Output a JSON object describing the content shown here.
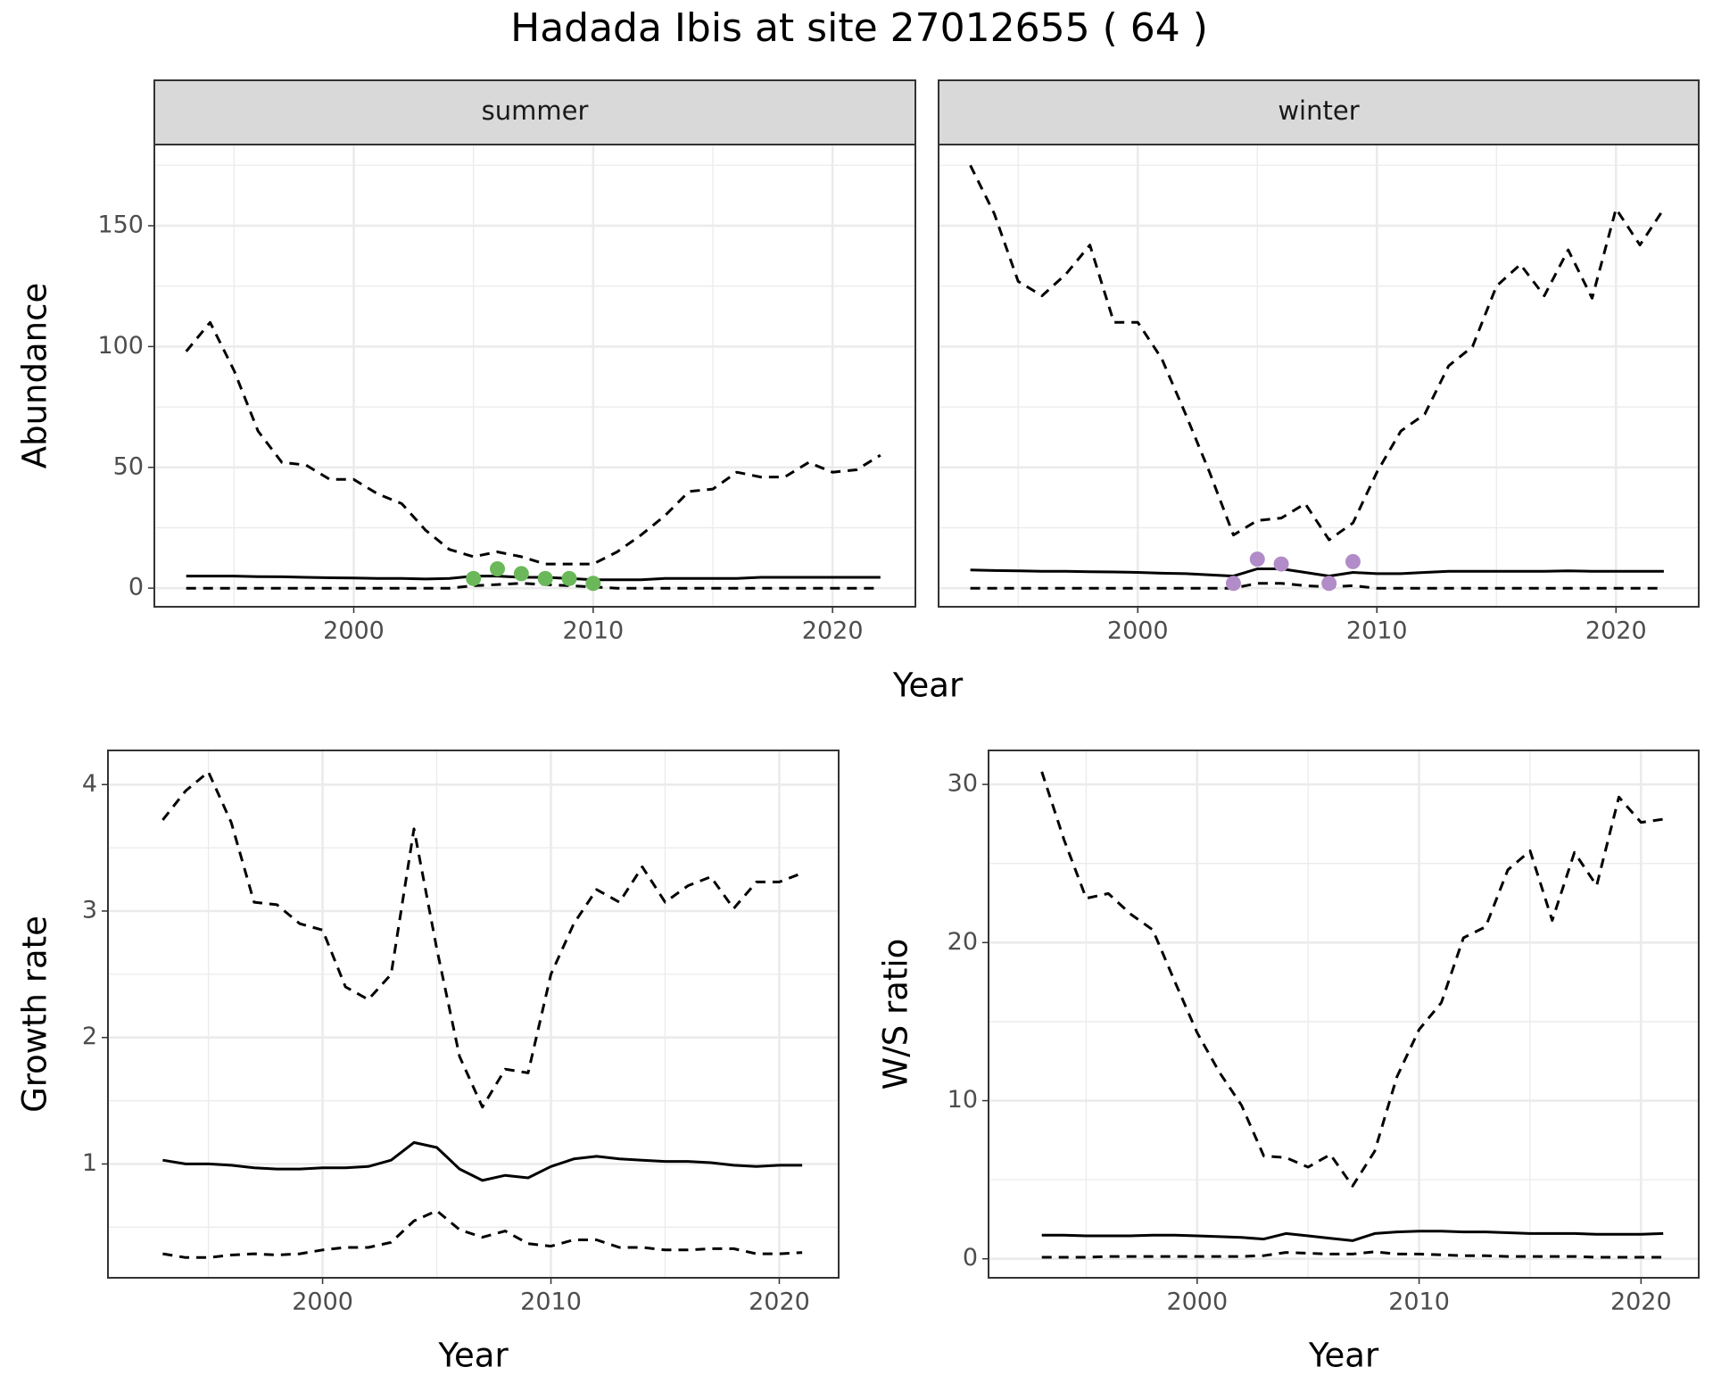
{
  "title": "Hadada Ibis at site 27012655 ( 64 )",
  "top_xlabel": "Year",
  "chart_data": [
    {
      "type": "line",
      "facet": "summer",
      "ylabel": "Abundance",
      "grid": true,
      "xlim": [
        1991.67,
        2023.46
      ],
      "xticks": [
        2000,
        2010,
        2020
      ],
      "xminorticks": [
        1995,
        2005,
        2015
      ],
      "ylim": [
        -7.7,
        183.6
      ],
      "yticks": [
        0,
        50,
        100,
        150
      ],
      "yminorticks": [
        25,
        75,
        125,
        175
      ],
      "x": [
        1993,
        1994,
        1995,
        1996,
        1997,
        1998,
        1999,
        2000,
        2001,
        2002,
        2003,
        2004,
        2005,
        2006,
        2007,
        2008,
        2009,
        2010,
        2011,
        2012,
        2013,
        2014,
        2015,
        2016,
        2017,
        2018,
        2019,
        2020,
        2021,
        2022
      ],
      "series": [
        {
          "style": "dashed",
          "color": "#000000",
          "values": [
            98,
            110,
            90,
            65,
            52,
            51,
            45,
            45,
            39,
            35,
            24,
            16,
            13,
            15,
            13,
            10,
            10,
            10,
            15,
            22,
            30,
            40,
            41,
            48,
            46,
            46,
            52,
            48,
            49,
            55
          ]
        },
        {
          "style": "solid",
          "color": "#000000",
          "values": [
            5,
            5,
            5,
            4.8,
            4.7,
            4.5,
            4.3,
            4.2,
            4,
            4,
            3.8,
            4,
            5,
            5,
            4.5,
            4.5,
            4,
            3.5,
            3.5,
            3.5,
            4,
            4,
            4,
            4,
            4.5,
            4.5,
            4.5,
            4.5,
            4.5,
            4.5
          ]
        },
        {
          "style": "dashed",
          "color": "#000000",
          "values": [
            0,
            0,
            0,
            0,
            0,
            0,
            0,
            0,
            0,
            0,
            0,
            0,
            1,
            1.5,
            2,
            1.5,
            1,
            0.5,
            0,
            0,
            0,
            0,
            0,
            0,
            0,
            0,
            0,
            0,
            0,
            0
          ]
        },
        {
          "style": "point",
          "color": "#6ab85a",
          "x": [
            2005,
            2006,
            2007,
            2008,
            2009,
            2010
          ],
          "values": [
            4,
            8,
            6,
            4,
            4,
            2
          ]
        }
      ]
    },
    {
      "type": "line",
      "facet": "winter",
      "grid": true,
      "ytick_labels": false,
      "xlim": [
        1991.67,
        2023.46
      ],
      "xticks": [
        2000,
        2010,
        2020
      ],
      "xminorticks": [
        1995,
        2005,
        2015
      ],
      "ylim": [
        -7.7,
        183.6
      ],
      "yticks": [
        0,
        50,
        100,
        150
      ],
      "yminorticks": [
        25,
        75,
        125,
        175
      ],
      "x": [
        1993,
        1994,
        1995,
        1996,
        1997,
        1998,
        1999,
        2000,
        2001,
        2002,
        2003,
        2004,
        2005,
        2006,
        2007,
        2008,
        2009,
        2010,
        2011,
        2012,
        2013,
        2014,
        2015,
        2016,
        2017,
        2018,
        2019,
        2020,
        2021,
        2022
      ],
      "series": [
        {
          "style": "dashed",
          "color": "#000000",
          "values": [
            175,
            155,
            127,
            121,
            130,
            142,
            110,
            110,
            95,
            72,
            48,
            22,
            28,
            29,
            35,
            20,
            27,
            48,
            65,
            72,
            92,
            100,
            125,
            134,
            121,
            140,
            120,
            157,
            142,
            157
          ]
        },
        {
          "style": "solid",
          "color": "#000000",
          "values": [
            7.5,
            7.3,
            7.2,
            7,
            7,
            6.8,
            6.7,
            6.5,
            6.2,
            6,
            5.5,
            5,
            8,
            8,
            6.5,
            5,
            6.5,
            6,
            6,
            6.5,
            7,
            7,
            7,
            7,
            7,
            7.2,
            7,
            7,
            7,
            7
          ]
        },
        {
          "style": "dashed",
          "color": "#000000",
          "values": [
            0,
            0,
            0,
            0,
            0,
            0,
            0,
            0,
            0,
            0,
            0,
            0,
            2,
            2,
            1,
            0.5,
            1,
            0,
            0,
            0,
            0,
            0,
            0,
            0,
            0,
            0,
            0,
            0,
            0,
            0
          ]
        },
        {
          "style": "point",
          "color": "#b18cc8",
          "x": [
            2004,
            2005,
            2006,
            2008,
            2009
          ],
          "values": [
            2,
            12,
            10,
            2,
            11
          ]
        }
      ]
    },
    {
      "type": "line",
      "xlabel": "Year",
      "ylabel": "Growth rate",
      "grid": true,
      "xlim": [
        1990.6,
        2022.6
      ],
      "xticks": [
        2000,
        2010,
        2020
      ],
      "xminorticks": [
        1995,
        2005,
        2015
      ],
      "ylim": [
        0.1,
        4.27
      ],
      "yticks": [
        1,
        2,
        3,
        4
      ],
      "yminorticks": [
        0.5,
        1.5,
        2.5,
        3.5
      ],
      "x": [
        1993,
        1994,
        1995,
        1996,
        1997,
        1998,
        1999,
        2000,
        2001,
        2002,
        2003,
        2004,
        2005,
        2006,
        2007,
        2008,
        2009,
        2010,
        2011,
        2012,
        2013,
        2014,
        2015,
        2016,
        2017,
        2018,
        2019,
        2020,
        2021
      ],
      "series": [
        {
          "style": "dashed",
          "color": "#000000",
          "values": [
            3.72,
            3.95,
            4.1,
            3.7,
            3.07,
            3.05,
            2.9,
            2.85,
            2.4,
            2.3,
            2.5,
            3.65,
            2.7,
            1.85,
            1.45,
            1.75,
            1.72,
            2.5,
            2.9,
            3.17,
            3.07,
            3.35,
            3.07,
            3.2,
            3.27,
            3.02,
            3.23,
            3.23,
            3.3
          ]
        },
        {
          "style": "solid",
          "color": "#000000",
          "values": [
            1.03,
            1.0,
            1.0,
            0.99,
            0.97,
            0.96,
            0.96,
            0.97,
            0.97,
            0.98,
            1.03,
            1.17,
            1.13,
            0.96,
            0.87,
            0.91,
            0.89,
            0.98,
            1.04,
            1.06,
            1.04,
            1.03,
            1.02,
            1.02,
            1.01,
            0.99,
            0.98,
            0.99,
            0.99
          ]
        },
        {
          "style": "dashed",
          "color": "#000000",
          "values": [
            0.29,
            0.26,
            0.26,
            0.28,
            0.29,
            0.28,
            0.29,
            0.32,
            0.34,
            0.34,
            0.38,
            0.55,
            0.63,
            0.48,
            0.42,
            0.47,
            0.37,
            0.35,
            0.4,
            0.4,
            0.34,
            0.34,
            0.32,
            0.32,
            0.33,
            0.33,
            0.29,
            0.29,
            0.3
          ]
        }
      ]
    },
    {
      "type": "line",
      "xlabel": "Year",
      "ylabel": "W/S ratio",
      "grid": true,
      "xlim": [
        1990.6,
        2022.6
      ],
      "xticks": [
        2000,
        2010,
        2020
      ],
      "xminorticks": [
        1995,
        2005,
        2015
      ],
      "ylim": [
        -1.2,
        32.15
      ],
      "yticks": [
        0,
        10,
        20,
        30
      ],
      "yminorticks": [
        5,
        15,
        25
      ],
      "x": [
        1993,
        1994,
        1995,
        1996,
        1997,
        1998,
        1999,
        2000,
        2001,
        2002,
        2003,
        2004,
        2005,
        2006,
        2007,
        2008,
        2009,
        2010,
        2011,
        2012,
        2013,
        2014,
        2015,
        2016,
        2017,
        2018,
        2019,
        2020,
        2021
      ],
      "series": [
        {
          "style": "dashed",
          "color": "#000000",
          "values": [
            30.8,
            26.5,
            22.8,
            23.1,
            21.8,
            20.8,
            17.5,
            14.3,
            11.8,
            9.7,
            6.5,
            6.4,
            5.8,
            6.6,
            4.6,
            6.8,
            11.5,
            14.5,
            16.2,
            20.3,
            21,
            24.6,
            25.8,
            21.4,
            25.7,
            23.6,
            29.2,
            27.6,
            27.8
          ]
        },
        {
          "style": "solid",
          "color": "#000000",
          "values": [
            1.5,
            1.5,
            1.45,
            1.45,
            1.45,
            1.5,
            1.5,
            1.45,
            1.4,
            1.35,
            1.25,
            1.6,
            1.45,
            1.3,
            1.15,
            1.6,
            1.7,
            1.75,
            1.75,
            1.7,
            1.7,
            1.65,
            1.6,
            1.6,
            1.6,
            1.55,
            1.55,
            1.55,
            1.6
          ]
        },
        {
          "style": "dashed",
          "color": "#000000",
          "values": [
            0.1,
            0.1,
            0.1,
            0.15,
            0.15,
            0.15,
            0.15,
            0.15,
            0.15,
            0.15,
            0.2,
            0.4,
            0.35,
            0.3,
            0.3,
            0.45,
            0.3,
            0.3,
            0.25,
            0.2,
            0.2,
            0.15,
            0.15,
            0.15,
            0.15,
            0.1,
            0.1,
            0.1,
            0.1
          ]
        }
      ]
    }
  ]
}
